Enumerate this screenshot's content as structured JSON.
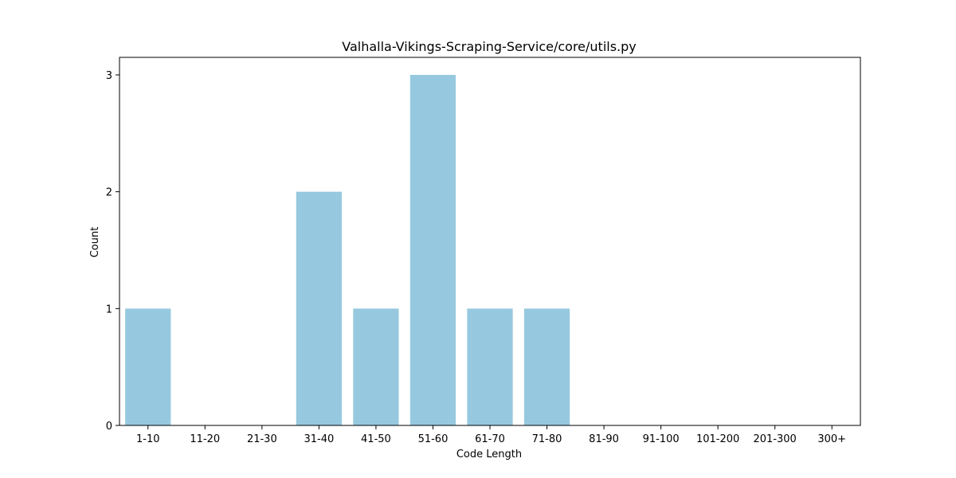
{
  "chart_data": {
    "type": "bar",
    "title": "Valhalla-Vikings-Scraping-Service/core/utils.py",
    "xlabel": "Code Length",
    "ylabel": "Count",
    "categories": [
      "1-10",
      "11-20",
      "21-30",
      "31-40",
      "41-50",
      "51-60",
      "61-70",
      "71-80",
      "81-90",
      "91-100",
      "101-200",
      "201-300",
      "300+"
    ],
    "values": [
      1,
      0,
      0,
      2,
      1,
      3,
      1,
      1,
      0,
      0,
      0,
      0,
      0
    ],
    "ylim": [
      0,
      3.15
    ],
    "yticks": [
      0,
      1,
      2,
      3
    ],
    "grid": false,
    "colors": {
      "bar": "#96c9df",
      "axis": "#000000"
    }
  }
}
